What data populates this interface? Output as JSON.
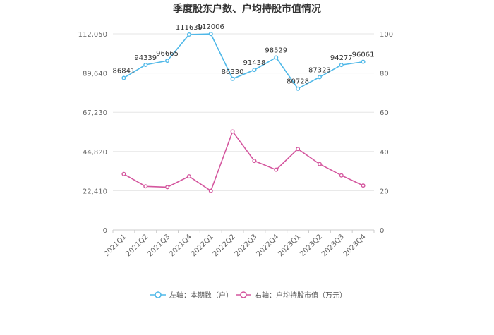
{
  "chart_data": {
    "type": "line",
    "title": "季度股东户数、户均持股市值情况",
    "categories": [
      "2021Q1",
      "2021Q2",
      "2021Q3",
      "2021Q4",
      "2022Q1",
      "2022Q2",
      "2022Q3",
      "2022Q4",
      "2023Q1",
      "2023Q2",
      "2023Q3",
      "2023Q4"
    ],
    "left_axis": {
      "ticks": [
        "0",
        "22,410",
        "44,820",
        "67,230",
        "89,640",
        "112,050"
      ],
      "ylim": [
        0,
        112050
      ]
    },
    "right_axis": {
      "ticks": [
        "0",
        "20",
        "40",
        "60",
        "80",
        "100"
      ],
      "ylim": [
        0,
        100
      ]
    },
    "series": [
      {
        "name": "左轴：本期数（户）",
        "axis": "left",
        "color": "#4fb8e8",
        "values": [
          86841,
          94339,
          96665,
          111639,
          112006,
          86330,
          91438,
          98529,
          80728,
          87323,
          94277,
          96061
        ],
        "labels": [
          "86841",
          "94339",
          "96665",
          "111639",
          "112006",
          "86330",
          "91438",
          "98529",
          "80728",
          "87323",
          "94277",
          "96061"
        ]
      },
      {
        "name": "右轴：户均持股市值（万元）",
        "axis": "right",
        "color": "#d4569e",
        "values": [
          28.5,
          22.2,
          21.8,
          27.3,
          19.9,
          50.2,
          35.2,
          30.7,
          41.3,
          33.6,
          27.8,
          22.6
        ]
      }
    ],
    "grid": true,
    "legend_position": "bottom"
  }
}
